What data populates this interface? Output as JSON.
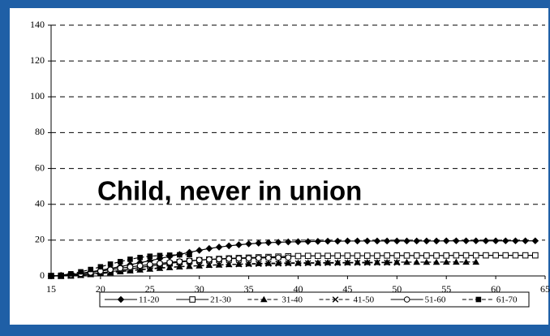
{
  "chart_data": {
    "type": "line",
    "annotation": "Child, never in union",
    "annotation_color": "#f0561e",
    "x": [
      15,
      16,
      17,
      18,
      19,
      20,
      21,
      22,
      23,
      24,
      25,
      26,
      27,
      28,
      29,
      30,
      31,
      32,
      33,
      34,
      35,
      36,
      37,
      38,
      39,
      40,
      41,
      42,
      43,
      44,
      45,
      46,
      47,
      48,
      49,
      50,
      51,
      52,
      53,
      54,
      55,
      56,
      57,
      58,
      59,
      60,
      61,
      62,
      63,
      64
    ],
    "xlim": [
      15,
      65
    ],
    "xticks": [
      15,
      20,
      25,
      30,
      35,
      40,
      45,
      50,
      55,
      60,
      65
    ],
    "ylim": [
      0,
      140
    ],
    "yticks": [
      0,
      20,
      40,
      60,
      80,
      100,
      120,
      140
    ],
    "grid": true,
    "legend": "bottom",
    "series": [
      {
        "name": "11-20",
        "color": "#000000",
        "marker": "diamond",
        "dashed": false,
        "values": [
          0,
          0.3,
          0.8,
          1.5,
          2.3,
          3.2,
          4.2,
          5.2,
          6.3,
          7.4,
          8.5,
          9.7,
          10.9,
          12,
          13.2,
          14.3,
          15.3,
          16.1,
          16.8,
          17.4,
          17.9,
          18.3,
          18.6,
          18.8,
          19,
          19.1,
          19.2,
          19.3,
          19.4,
          19.4,
          19.5,
          19.5,
          19.5,
          19.5,
          19.5,
          19.5,
          19.5,
          19.5,
          19.5,
          19.5,
          19.6,
          19.6,
          19.6,
          19.6,
          19.6,
          19.6,
          19.6,
          19.6,
          19.6,
          19.6
        ]
      },
      {
        "name": "21-30",
        "color": "#000000",
        "marker": "square-open",
        "dashed": false,
        "values": [
          0,
          0,
          0.2,
          0.6,
          1.1,
          1.7,
          2.4,
          3.1,
          3.9,
          4.7,
          5.5,
          6.3,
          7,
          7.7,
          8.3,
          8.8,
          9.2,
          9.5,
          9.8,
          10,
          10.2,
          10.4,
          10.6,
          10.8,
          11,
          11.1,
          11.2,
          11.2,
          11.2,
          11.3,
          11.3,
          11.3,
          11.3,
          11.3,
          11.4,
          11.4,
          11.4,
          11.4,
          11.4,
          11.4,
          11.4,
          11.5,
          11.5,
          11.5,
          11.5,
          11.5,
          11.5,
          11.5,
          11.5,
          11.5
        ]
      },
      {
        "name": "31-40",
        "color": "#000000",
        "marker": "triangle",
        "dashed": true,
        "values": [
          0,
          0,
          0.1,
          0.4,
          0.8,
          1.3,
          1.8,
          2.4,
          2.9,
          3.4,
          3.9,
          4.3,
          4.7,
          5.1,
          5.4,
          5.7,
          6,
          6.2,
          6.4,
          6.6,
          6.8,
          7,
          7.1,
          7.2,
          7.3,
          7.3,
          7.4,
          7.4,
          7.5,
          7.5,
          7.5,
          7.6,
          7.6,
          7.6,
          7.6,
          7.7,
          7.7,
          7.7,
          7.7,
          7.7,
          7.8,
          7.8,
          7.8,
          7.8,
          null,
          null,
          null,
          null,
          null,
          null
        ]
      },
      {
        "name": "41-50",
        "color": "#000000",
        "marker": "x",
        "dashed": true,
        "values": [
          0,
          0,
          0.1,
          0.4,
          0.9,
          1.4,
          2,
          2.6,
          3.1,
          3.6,
          4.1,
          4.5,
          4.9,
          5.2,
          5.5,
          5.8,
          6,
          6.2,
          6.4,
          6.5,
          6.6,
          6.7,
          6.8,
          6.9,
          7,
          7,
          7.1,
          7.1,
          7.2,
          7.2,
          7.3,
          7.3,
          7.3,
          7.4,
          7.4,
          7.4,
          null,
          null,
          null,
          null,
          null,
          null,
          null,
          null,
          null,
          null,
          null,
          null,
          null,
          null
        ]
      },
      {
        "name": "51-60",
        "color": "#000000",
        "marker": "circle-open",
        "dashed": false,
        "values": [
          0,
          0.2,
          0.6,
          1.2,
          1.9,
          2.7,
          3.5,
          4.3,
          5,
          5.7,
          6.4,
          7,
          7.6,
          8.1,
          8.5,
          8.9,
          9.2,
          9.4,
          9.6,
          9.8,
          9.9,
          10,
          10.1,
          10.2,
          10.3,
          null,
          null,
          null,
          null,
          null,
          null,
          null,
          null,
          null,
          null,
          null,
          null,
          null,
          null,
          null,
          null,
          null,
          null,
          null,
          null,
          null,
          null,
          null,
          null,
          null
        ]
      },
      {
        "name": "61-70",
        "color": "#000000",
        "marker": "square",
        "dashed": true,
        "values": [
          0,
          0.4,
          1.2,
          2.3,
          3.6,
          5.1,
          6.6,
          8,
          9.3,
          10.3,
          11,
          11.4,
          11.6,
          11.8,
          11.9,
          null,
          null,
          null,
          null,
          null,
          null,
          null,
          null,
          null,
          null,
          null,
          null,
          null,
          null,
          null,
          null,
          null,
          null,
          null,
          null,
          null,
          null,
          null,
          null,
          null,
          null,
          null,
          null,
          null,
          null,
          null,
          null,
          null,
          null,
          null
        ]
      }
    ]
  }
}
